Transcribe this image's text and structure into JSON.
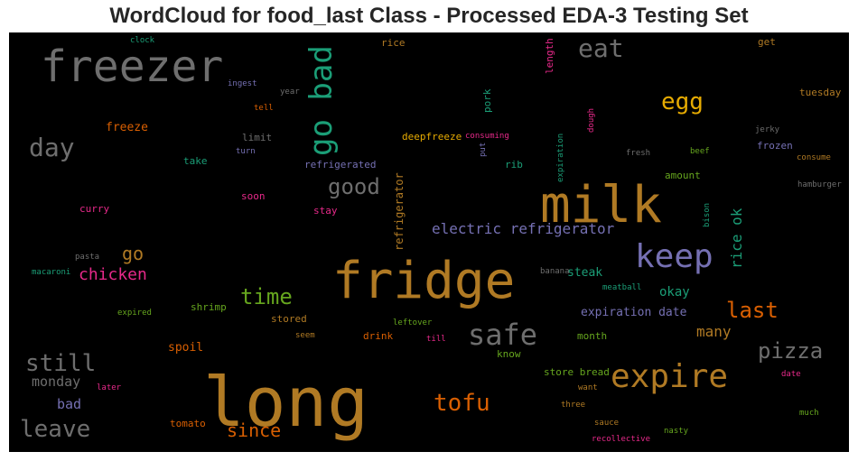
{
  "chart_data": {
    "type": "wordcloud",
    "title": "WordCloud for food_last Class - Processed EDA-3 Testing Set",
    "background": "#000000",
    "words": [
      {
        "text": "long",
        "color": "#b07a24"
      },
      {
        "text": "fridge",
        "color": "#b07a24"
      },
      {
        "text": "milk",
        "color": "#b07a24"
      },
      {
        "text": "freezer",
        "color": "#6e6e6e"
      },
      {
        "text": "keep",
        "color": "#7570b3"
      },
      {
        "text": "expire",
        "color": "#b07a24"
      },
      {
        "text": "safe",
        "color": "#6e6e6e"
      },
      {
        "text": "go bad",
        "color": "#1b9e77"
      },
      {
        "text": "eat",
        "color": "#6e6e6e"
      },
      {
        "text": "still",
        "color": "#6e6e6e"
      },
      {
        "text": "leave",
        "color": "#6e6e6e"
      },
      {
        "text": "day",
        "color": "#6e6e6e"
      },
      {
        "text": "tofu",
        "color": "#d95f02"
      },
      {
        "text": "time",
        "color": "#66a61e"
      },
      {
        "text": "egg",
        "color": "#e6ab02"
      },
      {
        "text": "pizza",
        "color": "#6e6e6e"
      },
      {
        "text": "good",
        "color": "#6e6e6e"
      },
      {
        "text": "last",
        "color": "#d95f02"
      },
      {
        "text": "since",
        "color": "#d95f02"
      },
      {
        "text": "go",
        "color": "#b07a24"
      },
      {
        "text": "chicken",
        "color": "#e7298a"
      },
      {
        "text": "electric refrigerator",
        "color": "#7570b3"
      },
      {
        "text": "many",
        "color": "#b07a24"
      },
      {
        "text": "rice ok",
        "color": "#1b9e77"
      },
      {
        "text": "monday",
        "color": "#6e6e6e"
      },
      {
        "text": "bad",
        "color": "#7570b3"
      },
      {
        "text": "okay",
        "color": "#1b9e77"
      },
      {
        "text": "expiration date",
        "color": "#7570b3"
      },
      {
        "text": "steak",
        "color": "#1b9e77"
      },
      {
        "text": "spoil",
        "color": "#d95f02"
      },
      {
        "text": "refrigerator",
        "color": "#b07a24"
      },
      {
        "text": "freeze",
        "color": "#d95f02"
      },
      {
        "text": "deepfreeze",
        "color": "#e6ab02"
      },
      {
        "text": "refrigerated",
        "color": "#7570b3"
      },
      {
        "text": "limit",
        "color": "#6e6e6e"
      },
      {
        "text": "take",
        "color": "#1b9e77"
      },
      {
        "text": "frozen",
        "color": "#7570b3"
      },
      {
        "text": "tuesday",
        "color": "#b07a24"
      },
      {
        "text": "get",
        "color": "#b07a24"
      },
      {
        "text": "rice",
        "color": "#b07a24"
      },
      {
        "text": "length",
        "color": "#e7298a"
      },
      {
        "text": "pork",
        "color": "#1b9e77"
      },
      {
        "text": "rib",
        "color": "#1b9e77"
      },
      {
        "text": "amount",
        "color": "#66a61e"
      },
      {
        "text": "shrimp",
        "color": "#66a61e"
      },
      {
        "text": "stored",
        "color": "#b07a24"
      },
      {
        "text": "drink",
        "color": "#d95f02"
      },
      {
        "text": "know",
        "color": "#66a61e"
      },
      {
        "text": "store bread",
        "color": "#66a61e"
      },
      {
        "text": "month",
        "color": "#66a61e"
      },
      {
        "text": "curry",
        "color": "#e7298a"
      },
      {
        "text": "soon",
        "color": "#e7298a"
      },
      {
        "text": "stay",
        "color": "#e7298a"
      },
      {
        "text": "tomato",
        "color": "#d95f02"
      },
      {
        "text": "clock",
        "color": "#1b9e77"
      },
      {
        "text": "ingest",
        "color": "#7570b3"
      },
      {
        "text": "year",
        "color": "#6e6e6e"
      },
      {
        "text": "tell",
        "color": "#d95f02"
      },
      {
        "text": "turn",
        "color": "#7570b3"
      },
      {
        "text": "consuming",
        "color": "#e7298a"
      },
      {
        "text": "put",
        "color": "#7570b3"
      },
      {
        "text": "expiration",
        "color": "#1b9e77"
      },
      {
        "text": "dough",
        "color": "#e7298a"
      },
      {
        "text": "fresh",
        "color": "#6e6e6e"
      },
      {
        "text": "beef",
        "color": "#66a61e"
      },
      {
        "text": "jerky",
        "color": "#6e6e6e"
      },
      {
        "text": "consume",
        "color": "#b07a24"
      },
      {
        "text": "bison",
        "color": "#1b9e77"
      },
      {
        "text": "hamburger",
        "color": "#6e6e6e"
      },
      {
        "text": "pasta",
        "color": "#6e6e6e"
      },
      {
        "text": "macaroni",
        "color": "#1b9e77"
      },
      {
        "text": "banana",
        "color": "#6e6e6e"
      },
      {
        "text": "meatball",
        "color": "#1b9e77"
      },
      {
        "text": "expired",
        "color": "#66a61e"
      },
      {
        "text": "leftover",
        "color": "#66a61e"
      },
      {
        "text": "seem",
        "color": "#b07a24"
      },
      {
        "text": "till",
        "color": "#e7298a"
      },
      {
        "text": "later",
        "color": "#e7298a"
      },
      {
        "text": "want",
        "color": "#b07a24"
      },
      {
        "text": "three",
        "color": "#b07a24"
      },
      {
        "text": "sauce",
        "color": "#b07a24"
      },
      {
        "text": "recollective",
        "color": "#e7298a"
      },
      {
        "text": "nasty",
        "color": "#66a61e"
      },
      {
        "text": "much",
        "color": "#66a61e"
      },
      {
        "text": "date",
        "color": "#e7298a"
      }
    ]
  }
}
